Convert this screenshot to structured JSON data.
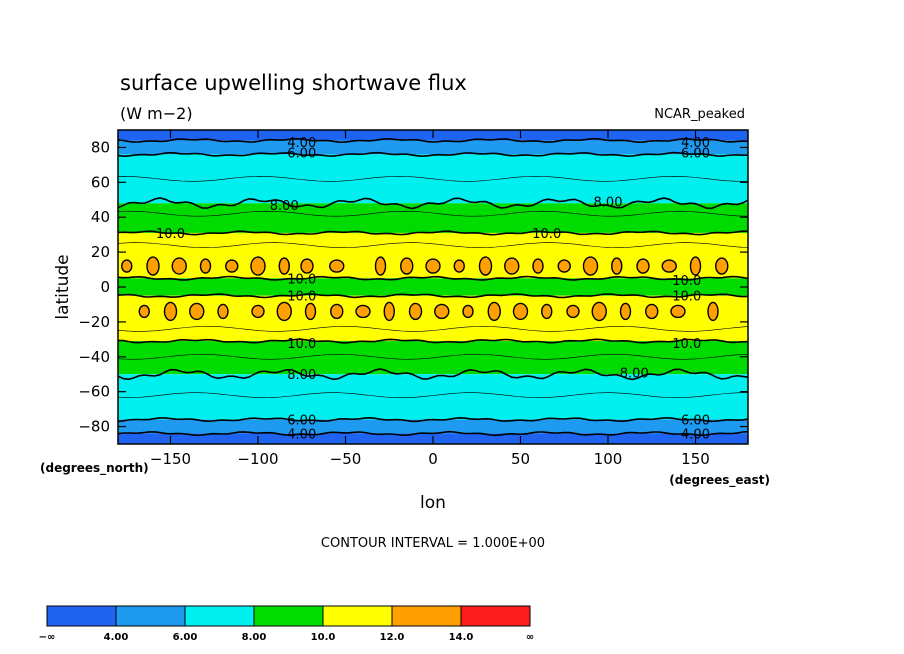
{
  "chart_data": {
    "type": "heatmap",
    "title": "surface upwelling shortwave flux",
    "units": "(W m−2)",
    "dataset_label": "NCAR_peaked",
    "xlabel": "lon",
    "ylabel": "latitude",
    "x_units": "(degrees_east)",
    "y_units": "(degrees_north)",
    "xlim": [
      -180,
      180
    ],
    "ylim": [
      -90,
      90
    ],
    "x_ticks": [
      -150,
      -100,
      -50,
      0,
      50,
      100,
      150
    ],
    "x_tick_labels": [
      "−150",
      "−100",
      "−50",
      "0",
      "50",
      "100",
      "150"
    ],
    "y_ticks": [
      80,
      60,
      40,
      20,
      0,
      -20,
      -40,
      -60,
      -80
    ],
    "y_tick_labels": [
      "80",
      "60",
      "40",
      "20",
      "0",
      "−20",
      "−40",
      "−60",
      "−80"
    ],
    "contour_interval_text": "CONTOUR INTERVAL = 1.000E+00",
    "zonal_bands": [
      {
        "lat_from": 90,
        "lat_to": 84,
        "level": "<4"
      },
      {
        "lat_from": 84,
        "lat_to": 76,
        "level": "4-6"
      },
      {
        "lat_from": 76,
        "lat_to": 48,
        "level": "6-8"
      },
      {
        "lat_from": 48,
        "lat_to": 31,
        "level": "8-10"
      },
      {
        "lat_from": 31,
        "lat_to": 5,
        "level": "10-12"
      },
      {
        "lat_from": 5,
        "lat_to": -5,
        "level": "8-10"
      },
      {
        "lat_from": -5,
        "lat_to": -31,
        "level": "10-12"
      },
      {
        "lat_from": -31,
        "lat_to": -50,
        "level": "8-10"
      },
      {
        "lat_from": -50,
        "lat_to": -76,
        "level": "6-8"
      },
      {
        "lat_from": -76,
        "lat_to": -84,
        "level": "4-6"
      },
      {
        "lat_from": -84,
        "lat_to": -90,
        "level": "<4"
      }
    ],
    "maxima_12_14": {
      "north_lat": 12,
      "north_lons": [
        -175,
        -160,
        -145,
        -130,
        -115,
        -100,
        -85,
        -72,
        -55,
        -30,
        -15,
        0,
        15,
        30,
        45,
        60,
        75,
        90,
        105,
        120,
        135,
        150,
        165
      ],
      "south_lat": -14,
      "south_lons": [
        -165,
        -150,
        -135,
        -120,
        -100,
        -85,
        -70,
        -55,
        -40,
        -25,
        -10,
        5,
        20,
        35,
        50,
        65,
        80,
        95,
        110,
        125,
        140,
        160
      ]
    },
    "contour_labels": [
      {
        "text": "4.00",
        "lon": -75,
        "lat": 83
      },
      {
        "text": "4.00",
        "lon": 150,
        "lat": 83
      },
      {
        "text": "6.00",
        "lon": -75,
        "lat": 77
      },
      {
        "text": "6.00",
        "lon": 150,
        "lat": 77
      },
      {
        "text": "8.00",
        "lon": -85,
        "lat": 47
      },
      {
        "text": "8.00",
        "lon": 100,
        "lat": 49
      },
      {
        "text": "10.0",
        "lon": -150,
        "lat": 31
      },
      {
        "text": "10.0",
        "lon": 65,
        "lat": 31
      },
      {
        "text": "10.0",
        "lon": -75,
        "lat": 5
      },
      {
        "text": "10.0",
        "lon": -75,
        "lat": -5
      },
      {
        "text": "10.0",
        "lon": 145,
        "lat": 4
      },
      {
        "text": "10.0",
        "lon": 145,
        "lat": -5
      },
      {
        "text": "10.0",
        "lon": -75,
        "lat": -32
      },
      {
        "text": "10.0",
        "lon": 145,
        "lat": -32
      },
      {
        "text": "8.00",
        "lon": -75,
        "lat": -50
      },
      {
        "text": "8.00",
        "lon": 115,
        "lat": -49
      },
      {
        "text": "6.00",
        "lon": -75,
        "lat": -76
      },
      {
        "text": "6.00",
        "lon": 150,
        "lat": -76
      },
      {
        "text": "4.00",
        "lon": -75,
        "lat": -84
      },
      {
        "text": "4.00",
        "lon": 150,
        "lat": -84
      }
    ],
    "colorbar": {
      "colors": [
        "#1e64f0",
        "#1e9af0",
        "#00f0f0",
        "#00dc00",
        "#ffff00",
        "#ffa000",
        "#ff1e1e"
      ],
      "labels": [
        "−∞",
        "4.00",
        "6.00",
        "8.00",
        "10.0",
        "12.0",
        "14.0",
        "∞"
      ]
    }
  }
}
